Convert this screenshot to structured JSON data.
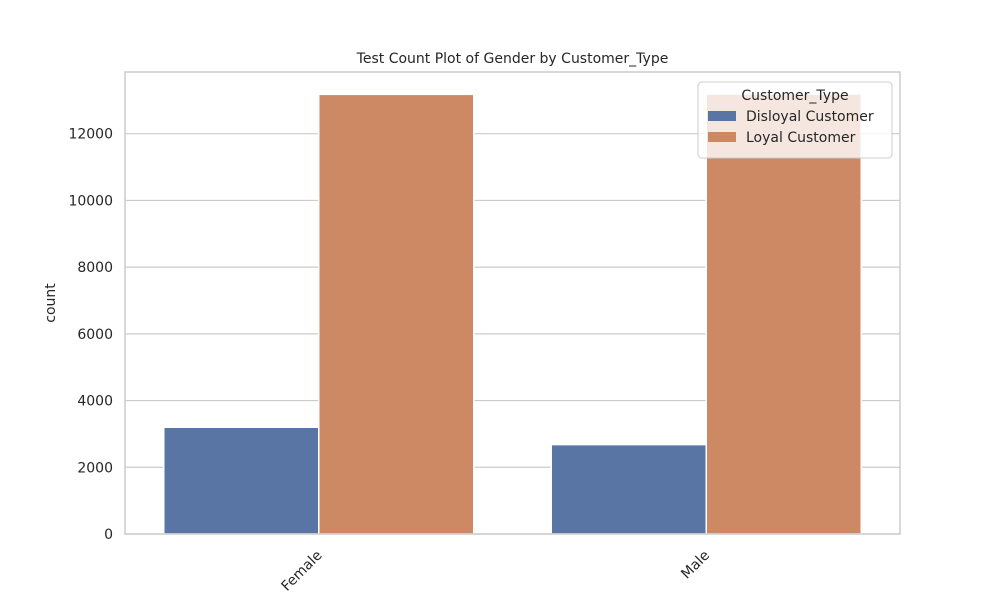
{
  "chart_data": {
    "type": "bar",
    "title": "Test Count Plot of Gender by Customer_Type",
    "xlabel": "",
    "ylabel": "count",
    "categories": [
      "Female",
      "Male"
    ],
    "series": [
      {
        "name": "Disloyal Customer",
        "values": [
          3200,
          2680
        ],
        "color": "#5875a4"
      },
      {
        "name": "Loyal Customer",
        "values": [
          13180,
          13190
        ],
        "color": "#cc8963"
      }
    ],
    "ylim": [
      0,
      13850
    ],
    "yticks": [
      0,
      2000,
      4000,
      6000,
      8000,
      10000,
      12000
    ],
    "grid": "horizontal",
    "legend": {
      "title": "Customer_Type",
      "placement": "top-right"
    }
  }
}
